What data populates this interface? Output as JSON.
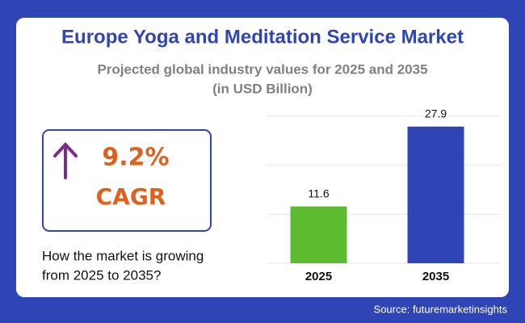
{
  "title": "Europe Yoga and Meditation Service Market",
  "subtitle": [
    "Projected global industry values for 2025 and 2035",
    "(in USD Billion)"
  ],
  "cagr": {
    "value": "9.2%",
    "label": "CAGR"
  },
  "question": [
    "How the market is growing",
    "from 2025 to 2035?"
  ],
  "source": "Source: futuremarketinsights",
  "chart_data": {
    "type": "bar",
    "categories": [
      "2025",
      "2035"
    ],
    "values": [
      11.6,
      27.9
    ],
    "colors": [
      "#5cbb2e",
      "#2f45b5"
    ],
    "ylim": [
      0,
      30
    ],
    "yticks": [
      0,
      10,
      20,
      30
    ],
    "grid": true
  }
}
